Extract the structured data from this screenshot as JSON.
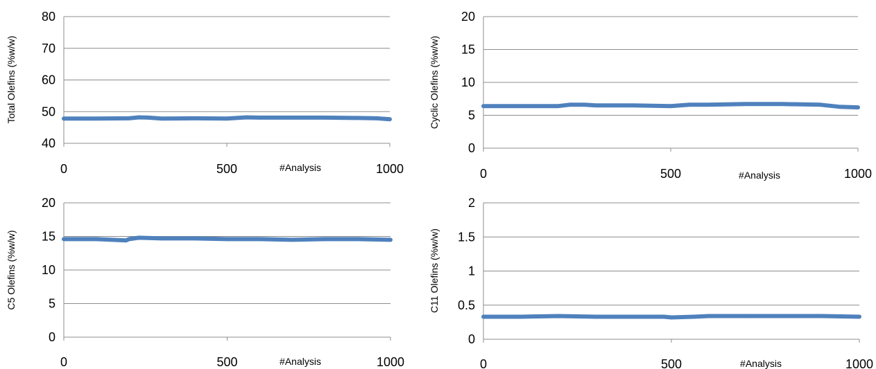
{
  "colors": {
    "series": "#4f81bd",
    "grid": "#8c8c8c",
    "text": "#000000"
  },
  "chart_data": [
    {
      "type": "line",
      "title": "",
      "xlabel": "#Analysis",
      "ylabel": "Total Olefins  (%w/w)",
      "xlim": [
        0,
        1000
      ],
      "ylim": [
        40,
        80
      ],
      "x_ticks": [
        0,
        500,
        1000
      ],
      "y_ticks": [
        40,
        50,
        60,
        70,
        80
      ],
      "grid": "horizontal",
      "legend": "none",
      "series": [
        {
          "x": [
            0,
            100,
            200,
            230,
            260,
            300,
            400,
            500,
            560,
            600,
            700,
            800,
            900,
            960,
            1000
          ],
          "values": [
            47.8,
            47.8,
            47.9,
            48.2,
            48.1,
            47.8,
            47.9,
            47.8,
            48.2,
            48.1,
            48.1,
            48.1,
            48.0,
            47.9,
            47.6
          ]
        }
      ]
    },
    {
      "type": "line",
      "title": "",
      "xlabel": "#Analysis",
      "ylabel": "Cyclic Olefins  (%w/w)",
      "xlim": [
        0,
        1000
      ],
      "ylim": [
        0,
        20
      ],
      "x_ticks": [
        0,
        500,
        1000
      ],
      "y_ticks": [
        0,
        5,
        10,
        15,
        20
      ],
      "grid": "horizontal",
      "legend": "none",
      "series": [
        {
          "x": [
            0,
            100,
            200,
            230,
            270,
            300,
            400,
            500,
            550,
            600,
            700,
            800,
            900,
            950,
            1000
          ],
          "values": [
            6.4,
            6.4,
            6.4,
            6.6,
            6.6,
            6.5,
            6.5,
            6.4,
            6.6,
            6.6,
            6.7,
            6.7,
            6.6,
            6.3,
            6.2
          ]
        }
      ]
    },
    {
      "type": "line",
      "title": "",
      "xlabel": "#Analysis",
      "ylabel": "C5 Olefins  (%w/w)",
      "xlim": [
        0,
        1000
      ],
      "ylim": [
        0,
        20
      ],
      "x_ticks": [
        0,
        500,
        1000
      ],
      "y_ticks": [
        0,
        5,
        10,
        15,
        20
      ],
      "grid": "horizontal",
      "legend": "none",
      "series": [
        {
          "x": [
            0,
            100,
            190,
            200,
            230,
            300,
            400,
            500,
            600,
            700,
            800,
            900,
            1000
          ],
          "values": [
            14.6,
            14.6,
            14.4,
            14.6,
            14.8,
            14.7,
            14.7,
            14.6,
            14.6,
            14.5,
            14.6,
            14.6,
            14.5
          ]
        }
      ]
    },
    {
      "type": "line",
      "title": "",
      "xlabel": "#Analysis",
      "ylabel": "C11 Olefins  (%w/w)",
      "xlim": [
        0,
        1000
      ],
      "ylim": [
        0,
        2
      ],
      "x_ticks": [
        0,
        500,
        1000
      ],
      "y_ticks": [
        0,
        0.5,
        1,
        1.5,
        2
      ],
      "y_tick_labels": [
        "0",
        "0.5",
        "1",
        "1.5",
        "2"
      ],
      "grid": "horizontal",
      "legend": "none",
      "series": [
        {
          "x": [
            0,
            100,
            200,
            300,
            400,
            480,
            500,
            560,
            600,
            700,
            800,
            900,
            1000
          ],
          "values": [
            0.33,
            0.33,
            0.34,
            0.33,
            0.33,
            0.33,
            0.32,
            0.33,
            0.34,
            0.34,
            0.34,
            0.34,
            0.33
          ]
        }
      ]
    }
  ]
}
